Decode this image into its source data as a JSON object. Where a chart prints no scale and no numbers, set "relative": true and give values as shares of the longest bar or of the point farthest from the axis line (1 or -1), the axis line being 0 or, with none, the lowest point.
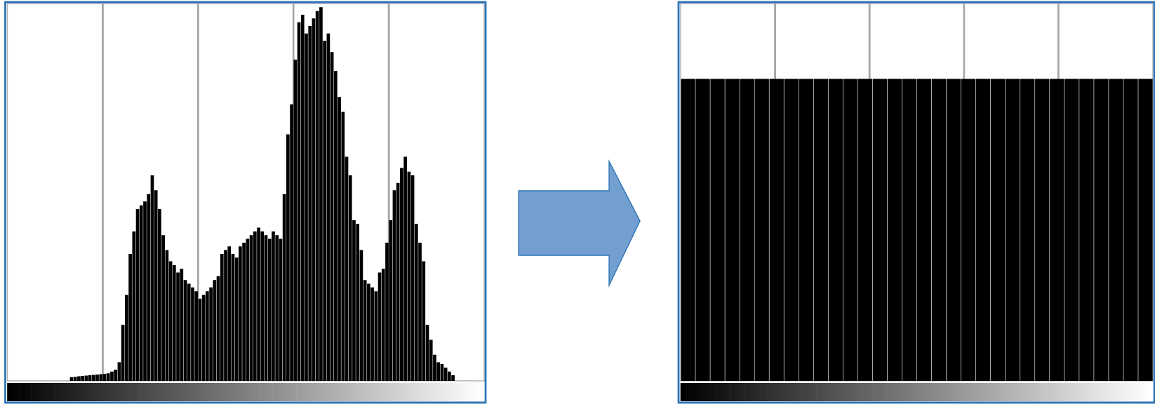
{
  "chart_data": [
    {
      "type": "bar",
      "relative": true,
      "grid": "x",
      "color": "#000000",
      "categories": [
        null,
        null,
        null,
        null,
        null,
        null,
        null,
        null,
        null,
        null,
        null,
        null,
        null,
        null,
        null,
        null,
        null,
        null,
        null,
        null,
        null,
        null,
        null,
        null,
        null,
        null,
        null,
        null,
        null,
        null,
        null,
        null,
        null,
        null,
        null,
        null,
        null,
        null,
        null,
        null,
        null,
        null,
        null,
        null,
        null,
        null,
        null,
        null,
        null,
        null,
        null,
        null,
        null,
        null,
        null,
        null,
        null,
        null,
        null,
        null,
        null,
        null,
        null,
        null,
        null,
        null,
        null,
        null,
        null,
        null,
        null,
        null,
        null,
        null,
        null,
        null,
        null,
        null,
        null,
        null,
        null,
        null,
        null,
        null,
        null,
        null,
        null,
        null,
        null,
        null,
        null,
        null,
        null,
        null,
        null,
        null,
        null,
        null,
        null,
        null,
        null,
        null,
        null,
        null,
        null
      ],
      "values": [
        0.01,
        0.011,
        0.012,
        0.013,
        0.014,
        0.015,
        0.016,
        0.017,
        0.018,
        0.019,
        0.02,
        0.025,
        0.03,
        0.05,
        0.15,
        0.23,
        0.34,
        0.4,
        0.46,
        0.47,
        0.48,
        0.5,
        0.55,
        0.51,
        0.46,
        0.39,
        0.35,
        0.32,
        0.31,
        0.29,
        0.3,
        0.27,
        0.26,
        0.25,
        0.24,
        0.22,
        0.23,
        0.24,
        0.25,
        0.27,
        0.28,
        0.34,
        0.35,
        0.36,
        0.34,
        0.33,
        0.36,
        0.37,
        0.38,
        0.39,
        0.4,
        0.41,
        0.4,
        0.39,
        0.38,
        0.4,
        0.39,
        0.38,
        0.5,
        0.66,
        0.74,
        0.86,
        0.96,
        0.98,
        0.93,
        0.95,
        0.97,
        0.99,
        1.0,
        0.91,
        0.93,
        0.88,
        0.83,
        0.76,
        0.72,
        0.6,
        0.55,
        0.43,
        0.42,
        0.35,
        0.27,
        0.26,
        0.25,
        0.24,
        0.29,
        0.3,
        0.37,
        0.43,
        0.51,
        0.53,
        0.57,
        0.6,
        0.56,
        0.55,
        0.42,
        0.37,
        0.32,
        0.15,
        0.11,
        0.07,
        0.05,
        0.045,
        0.035,
        0.025,
        0.015
      ]
    },
    {
      "type": "bar",
      "relative": true,
      "grid": "x",
      "color": "#000000",
      "categories": [
        null,
        null,
        null,
        null,
        null,
        null,
        null,
        null,
        null,
        null,
        null,
        null,
        null,
        null,
        null,
        null,
        null,
        null,
        null,
        null,
        null,
        null,
        null,
        null,
        null,
        null,
        null,
        null,
        null,
        null,
        null,
        null
      ],
      "values": [
        1,
        1,
        1,
        1,
        1,
        1,
        1,
        1,
        1,
        1,
        1,
        1,
        1,
        1,
        1,
        1,
        1,
        1,
        1,
        1,
        1,
        1,
        1,
        1,
        1,
        1,
        1,
        1,
        1,
        1,
        1,
        1
      ]
    }
  ]
}
